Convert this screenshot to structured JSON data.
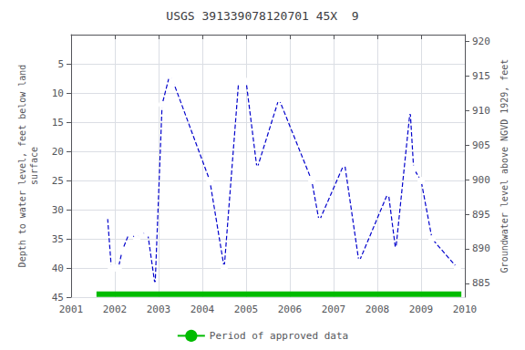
{
  "chart_data": {
    "type": "line",
    "title": "USGS 391339078120701 45X  9",
    "ylabel": "Depth to water level, feet below land\nsurface",
    "y2label": "Groundwater level above NGVD 1929, feet",
    "xlim": [
      2001,
      2010
    ],
    "xticks": [
      2001,
      2002,
      2003,
      2004,
      2005,
      2006,
      2007,
      2008,
      2009,
      2010
    ],
    "ylim": [
      45,
      0
    ],
    "yticks": [
      5,
      10,
      15,
      20,
      25,
      30,
      35,
      40,
      45
    ],
    "y2lim": [
      883,
      921
    ],
    "y2ticks": [
      885,
      890,
      895,
      900,
      905,
      910,
      915,
      920
    ],
    "grid": true,
    "legend": "bottom",
    "series": [
      {
        "type": "line",
        "color": "#0000cc",
        "marker": "open_circle",
        "line_style": "dashed",
        "x": [
          2001.75,
          2001.83,
          2001.92,
          2002.0,
          2002.08,
          2002.17,
          2002.33,
          2002.5,
          2002.58,
          2002.75,
          2002.92,
          2003.08,
          2003.25,
          2003.33,
          2004.17,
          2004.5,
          2004.83,
          2005.0,
          2005.25,
          2005.75,
          2006.5,
          2006.67,
          2007.25,
          2007.58,
          2008.25,
          2008.42,
          2008.75,
          2008.83,
          2009.0,
          2009.25,
          2009.83
        ],
        "values": [
          31,
          31,
          40,
          40,
          40,
          37,
          34,
          35,
          34,
          34,
          43,
          12,
          7,
          8,
          25,
          40,
          8,
          8,
          23,
          11,
          25,
          32,
          22,
          39,
          27,
          37,
          13,
          23,
          25,
          35,
          40
        ]
      },
      {
        "name": "Period of approved data",
        "type": "line",
        "color": "#00bb00",
        "marker": "none",
        "line_style": "solid",
        "x": [
          2001.58,
          2009.92
        ],
        "values": [
          44.5,
          44.5
        ]
      }
    ]
  }
}
